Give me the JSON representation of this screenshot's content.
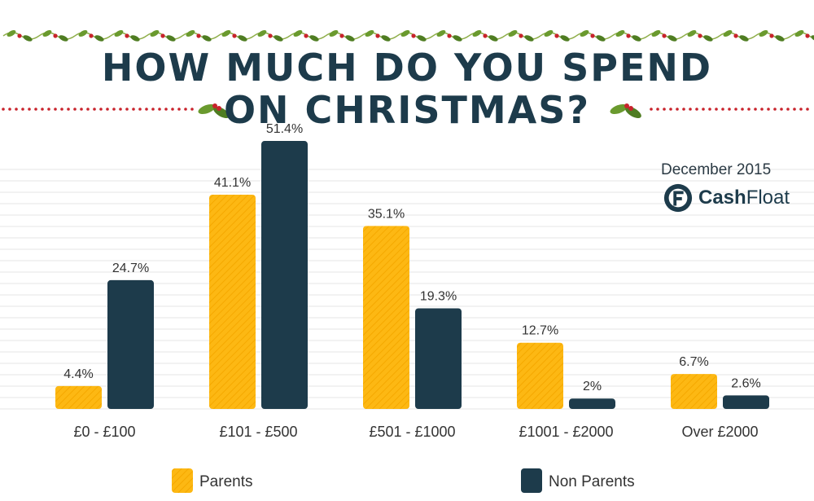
{
  "header": {
    "title_line1": "HOW MUCH DO YOU SPEND",
    "title_line2": "ON CHRISTMAS?"
  },
  "source": {
    "date": "December 2015",
    "brand_bold": "Cash",
    "brand_light": "Float",
    "logo_icon": "cashfloat-logo-icon"
  },
  "colors": {
    "parents": "#fdb813",
    "non_parents": "#1d3b4b",
    "title": "#1d3b4b",
    "ornament_red": "#c8232c",
    "ornament_green": "#6a9a2e"
  },
  "chart_data": {
    "type": "bar",
    "categories": [
      "£0 - £100",
      "£101 - £500",
      "£501 - £1000",
      "£1001 - £2000",
      "Over £2000"
    ],
    "series": [
      {
        "name": "Parents",
        "values": [
          4.4,
          41.1,
          35.1,
          12.7,
          6.7
        ],
        "labels": [
          "4.4%",
          "41.1%",
          "35.1%",
          "12.7%",
          "6.7%"
        ]
      },
      {
        "name": "Non Parents",
        "values": [
          24.7,
          51.4,
          19.3,
          2,
          2.6
        ],
        "labels": [
          "24.7%",
          "51.4%",
          "19.3%",
          "2%",
          "2.6%"
        ]
      }
    ],
    "unit": "%",
    "ylim": [
      0,
      55
    ],
    "grid": true,
    "legend_position": "bottom"
  }
}
